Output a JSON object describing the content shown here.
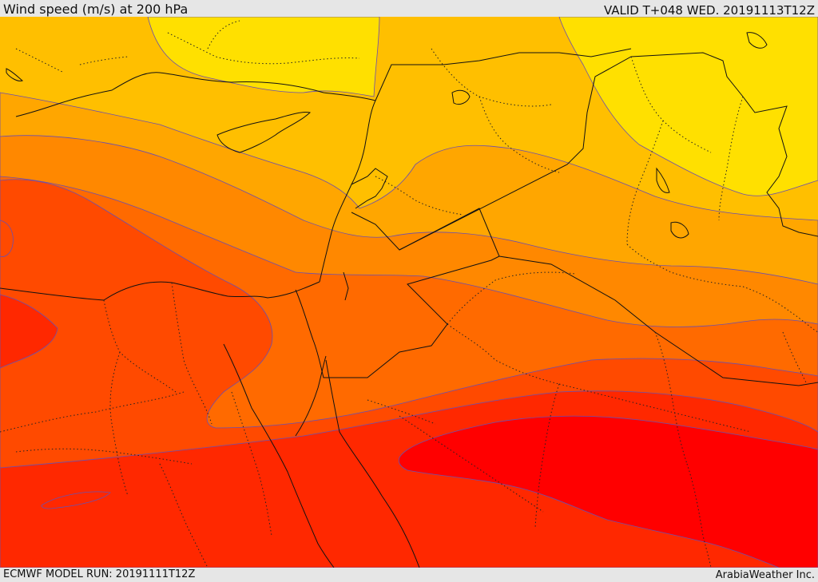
{
  "header": {
    "title": "Wind speed (m/s) at 200 hPa",
    "valid": "VALID T+048 WED. 20191113T12Z"
  },
  "footer": {
    "model_run": "ECMWF MODEL RUN: 20191111T12Z",
    "credit": "ArabiaWeather Inc."
  },
  "map": {
    "field": "wind speed 200 hPa",
    "palette": [
      "#ffe000",
      "#ffbf00",
      "#ffa600",
      "#ff8800",
      "#ff6a00",
      "#ff4a00",
      "#ff2800",
      "#ff0000"
    ],
    "contour_color": "#6a4fb0",
    "border_color": "#111111"
  }
}
